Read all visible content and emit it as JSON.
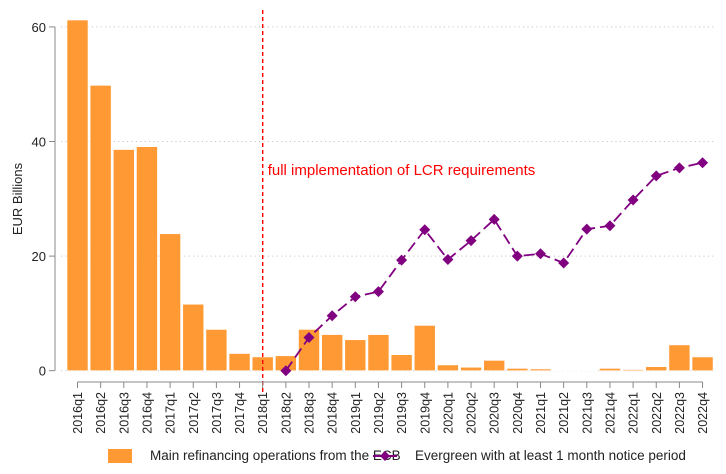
{
  "chart_data": {
    "type": "bar",
    "title": "",
    "xlabel": "",
    "ylabel": "EUR Billions",
    "ylim": [
      0,
      62
    ],
    "yticks": [
      0,
      20,
      40,
      60
    ],
    "grid": "horizontal dotted",
    "categories": [
      "2016q1",
      "2016q2",
      "2016q3",
      "2016q4",
      "2017q1",
      "2017q2",
      "2017q3",
      "2017q4",
      "2018q1",
      "2018q2",
      "2018q3",
      "2018q4",
      "2019q1",
      "2019q2",
      "2019q3",
      "2019q4",
      "2020q1",
      "2020q2",
      "2020q3",
      "2020q4",
      "2021q1",
      "2021q2",
      "2021q3",
      "2021q4",
      "2022q1",
      "2022q2",
      "2022q3",
      "2022q4"
    ],
    "series": [
      {
        "name": "Main refinancing operations from the ECB",
        "type": "bar",
        "color": "#FF9933",
        "values": [
          61.2,
          49.8,
          38.6,
          39.1,
          23.9,
          11.6,
          7.2,
          3.0,
          2.4,
          2.6,
          7.2,
          6.3,
          5.4,
          6.3,
          2.8,
          7.9,
          1.0,
          0.6,
          1.8,
          0.4,
          0.3,
          0.1,
          0.1,
          0.4,
          0.2,
          0.7,
          4.5,
          2.4
        ]
      },
      {
        "name": "Evergreen with at least 1 month notice period",
        "type": "line",
        "style": "dashed with diamond markers",
        "color": "#800080",
        "values": [
          null,
          null,
          null,
          null,
          null,
          null,
          null,
          null,
          null,
          0.0,
          5.8,
          9.6,
          12.9,
          13.8,
          19.3,
          24.6,
          19.4,
          22.7,
          26.4,
          20.0,
          20.4,
          18.8,
          24.7,
          25.3,
          29.8,
          34.0,
          35.4,
          36.3
        ]
      }
    ],
    "annotations": [
      {
        "type": "vline",
        "at": "2018q1",
        "color": "#FF0000",
        "style": "dashed"
      },
      {
        "type": "text",
        "text": "full implementation of LCR requirements",
        "color": "#FF0000",
        "near": "2018q1",
        "y": 35
      }
    ],
    "legend_position": "bottom"
  },
  "legend": {
    "bar_label": "Main refinancing operations from the ECB",
    "line_label": "Evergreen with at least 1 month notice period"
  }
}
